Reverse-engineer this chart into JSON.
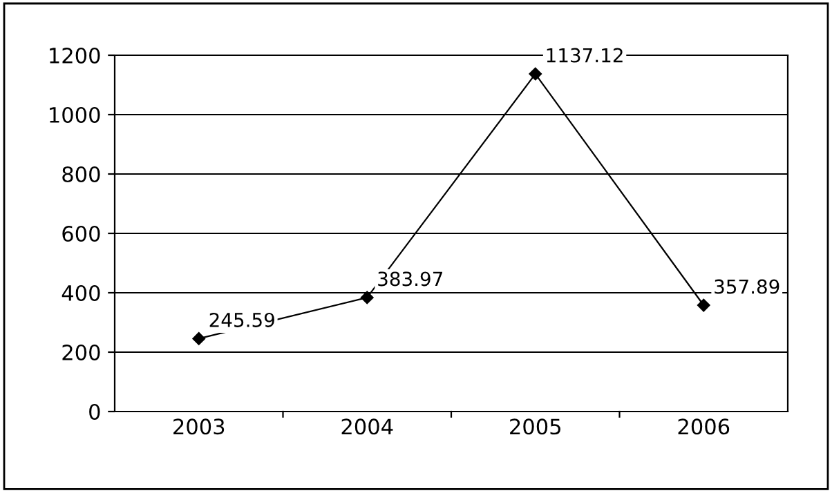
{
  "chart_data": {
    "type": "line",
    "categories": [
      "2003",
      "2004",
      "2005",
      "2006"
    ],
    "series": [
      {
        "color": "#000000",
        "values": [
          245.59,
          383.97,
          1137.12,
          357.89
        ]
      }
    ],
    "ylim": [
      0,
      1200
    ],
    "yticks": [
      0,
      200,
      400,
      600,
      800,
      1000,
      1200
    ],
    "grid": "y",
    "marker": "diamond",
    "line_style": "solid",
    "data_labels": true
  }
}
